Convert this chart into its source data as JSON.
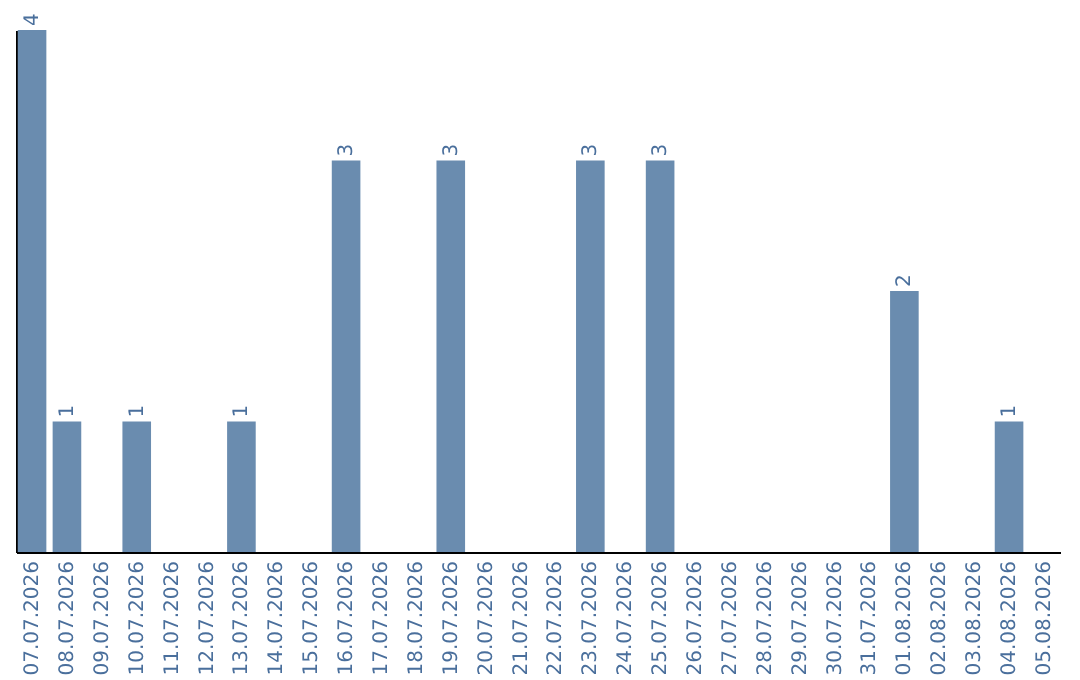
{
  "chart_data": {
    "type": "bar",
    "categories": [
      "07.07.2026",
      "08.07.2026",
      "09.07.2026",
      "10.07.2026",
      "11.07.2026",
      "12.07.2026",
      "13.07.2026",
      "14.07.2026",
      "15.07.2026",
      "16.07.2026",
      "17.07.2026",
      "18.07.2026",
      "19.07.2026",
      "20.07.2026",
      "21.07.2026",
      "22.07.2026",
      "23.07.2026",
      "24.07.2026",
      "25.07.2026",
      "26.07.2026",
      "27.07.2026",
      "28.07.2026",
      "29.07.2026",
      "30.07.2026",
      "31.07.2026",
      "01.08.2026",
      "02.08.2026",
      "03.08.2026",
      "04.08.2026",
      "05.08.2026"
    ],
    "values": [
      4,
      1,
      0,
      1,
      0,
      0,
      1,
      0,
      0,
      3,
      0,
      0,
      3,
      0,
      0,
      0,
      3,
      0,
      3,
      0,
      0,
      0,
      0,
      0,
      0,
      2,
      0,
      0,
      1,
      0
    ],
    "color": "#6a8caf",
    "ylim": [
      0,
      4
    ],
    "value_labels": [
      "4",
      "1",
      null,
      "1",
      null,
      null,
      "1",
      null,
      null,
      "3",
      null,
      null,
      "3",
      null,
      null,
      null,
      "3",
      null,
      "3",
      null,
      null,
      null,
      null,
      null,
      null,
      "2",
      null,
      null,
      "1",
      null
    ]
  }
}
